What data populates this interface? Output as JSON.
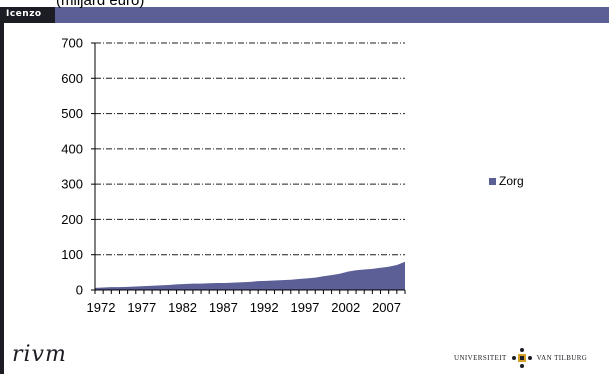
{
  "header": {
    "logo_text": "Icenzo",
    "subtitle": "(miljard euro)"
  },
  "footer": {
    "left_logo": "rivm",
    "right_logo": "Universiteit van Tilburg"
  },
  "colors": {
    "header_bar": "#5b5f96",
    "series_fill": "#5b5f96"
  },
  "chart_data": {
    "type": "area",
    "title": "",
    "xlabel": "",
    "ylabel": "",
    "ylim": [
      0,
      700
    ],
    "yticks": [
      0,
      100,
      200,
      300,
      400,
      500,
      600,
      700
    ],
    "xticks": [
      1972,
      1977,
      1982,
      1987,
      1992,
      1997,
      2002,
      2007
    ],
    "grid": true,
    "legend_position": "right",
    "series": [
      {
        "name": "Zorg",
        "x": [
          1972,
          1973,
          1974,
          1975,
          1976,
          1977,
          1978,
          1979,
          1980,
          1981,
          1982,
          1983,
          1984,
          1985,
          1986,
          1987,
          1988,
          1989,
          1990,
          1991,
          1992,
          1993,
          1994,
          1995,
          1996,
          1997,
          1998,
          1999,
          2000,
          2001,
          2002,
          2003,
          2004,
          2005,
          2006,
          2007,
          2008,
          2009,
          2010
        ],
        "values": [
          6,
          7,
          8,
          8,
          9,
          10,
          11,
          12,
          13,
          14,
          16,
          17,
          18,
          18,
          19,
          20,
          20,
          21,
          22,
          23,
          25,
          26,
          27,
          28,
          29,
          31,
          33,
          35,
          39,
          42,
          46,
          52,
          56,
          58,
          60,
          63,
          66,
          71,
          80
        ]
      }
    ]
  }
}
